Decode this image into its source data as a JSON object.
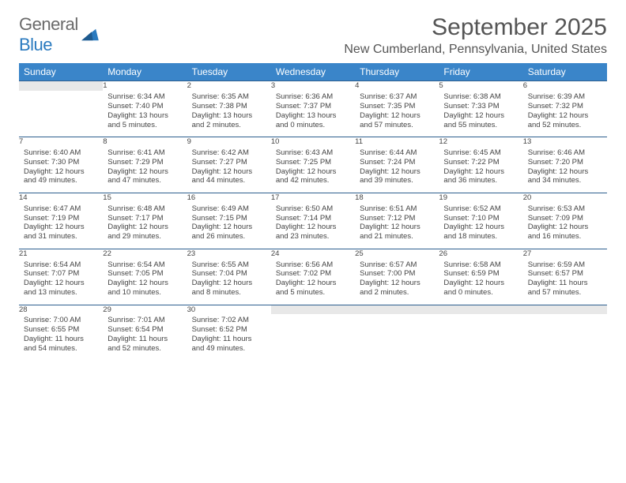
{
  "brand": {
    "part1": "General",
    "part2": "Blue"
  },
  "title": "September 2025",
  "location": "New Cumberland, Pennsylvania, United States",
  "colors": {
    "header_bg": "#3a85c9",
    "header_text": "#ffffff",
    "daynum_bg": "#e8e8e8",
    "row_border": "#2e5f8f",
    "logo_gray": "#6a6a6a",
    "logo_blue": "#2a7abf"
  },
  "weekdays": [
    "Sunday",
    "Monday",
    "Tuesday",
    "Wednesday",
    "Thursday",
    "Friday",
    "Saturday"
  ],
  "weeks": [
    [
      {
        "n": "",
        "sr": "",
        "ss": "",
        "dl": ""
      },
      {
        "n": "1",
        "sr": "Sunrise: 6:34 AM",
        "ss": "Sunset: 7:40 PM",
        "dl": "Daylight: 13 hours and 5 minutes."
      },
      {
        "n": "2",
        "sr": "Sunrise: 6:35 AM",
        "ss": "Sunset: 7:38 PM",
        "dl": "Daylight: 13 hours and 2 minutes."
      },
      {
        "n": "3",
        "sr": "Sunrise: 6:36 AM",
        "ss": "Sunset: 7:37 PM",
        "dl": "Daylight: 13 hours and 0 minutes."
      },
      {
        "n": "4",
        "sr": "Sunrise: 6:37 AM",
        "ss": "Sunset: 7:35 PM",
        "dl": "Daylight: 12 hours and 57 minutes."
      },
      {
        "n": "5",
        "sr": "Sunrise: 6:38 AM",
        "ss": "Sunset: 7:33 PM",
        "dl": "Daylight: 12 hours and 55 minutes."
      },
      {
        "n": "6",
        "sr": "Sunrise: 6:39 AM",
        "ss": "Sunset: 7:32 PM",
        "dl": "Daylight: 12 hours and 52 minutes."
      }
    ],
    [
      {
        "n": "7",
        "sr": "Sunrise: 6:40 AM",
        "ss": "Sunset: 7:30 PM",
        "dl": "Daylight: 12 hours and 49 minutes."
      },
      {
        "n": "8",
        "sr": "Sunrise: 6:41 AM",
        "ss": "Sunset: 7:29 PM",
        "dl": "Daylight: 12 hours and 47 minutes."
      },
      {
        "n": "9",
        "sr": "Sunrise: 6:42 AM",
        "ss": "Sunset: 7:27 PM",
        "dl": "Daylight: 12 hours and 44 minutes."
      },
      {
        "n": "10",
        "sr": "Sunrise: 6:43 AM",
        "ss": "Sunset: 7:25 PM",
        "dl": "Daylight: 12 hours and 42 minutes."
      },
      {
        "n": "11",
        "sr": "Sunrise: 6:44 AM",
        "ss": "Sunset: 7:24 PM",
        "dl": "Daylight: 12 hours and 39 minutes."
      },
      {
        "n": "12",
        "sr": "Sunrise: 6:45 AM",
        "ss": "Sunset: 7:22 PM",
        "dl": "Daylight: 12 hours and 36 minutes."
      },
      {
        "n": "13",
        "sr": "Sunrise: 6:46 AM",
        "ss": "Sunset: 7:20 PM",
        "dl": "Daylight: 12 hours and 34 minutes."
      }
    ],
    [
      {
        "n": "14",
        "sr": "Sunrise: 6:47 AM",
        "ss": "Sunset: 7:19 PM",
        "dl": "Daylight: 12 hours and 31 minutes."
      },
      {
        "n": "15",
        "sr": "Sunrise: 6:48 AM",
        "ss": "Sunset: 7:17 PM",
        "dl": "Daylight: 12 hours and 29 minutes."
      },
      {
        "n": "16",
        "sr": "Sunrise: 6:49 AM",
        "ss": "Sunset: 7:15 PM",
        "dl": "Daylight: 12 hours and 26 minutes."
      },
      {
        "n": "17",
        "sr": "Sunrise: 6:50 AM",
        "ss": "Sunset: 7:14 PM",
        "dl": "Daylight: 12 hours and 23 minutes."
      },
      {
        "n": "18",
        "sr": "Sunrise: 6:51 AM",
        "ss": "Sunset: 7:12 PM",
        "dl": "Daylight: 12 hours and 21 minutes."
      },
      {
        "n": "19",
        "sr": "Sunrise: 6:52 AM",
        "ss": "Sunset: 7:10 PM",
        "dl": "Daylight: 12 hours and 18 minutes."
      },
      {
        "n": "20",
        "sr": "Sunrise: 6:53 AM",
        "ss": "Sunset: 7:09 PM",
        "dl": "Daylight: 12 hours and 16 minutes."
      }
    ],
    [
      {
        "n": "21",
        "sr": "Sunrise: 6:54 AM",
        "ss": "Sunset: 7:07 PM",
        "dl": "Daylight: 12 hours and 13 minutes."
      },
      {
        "n": "22",
        "sr": "Sunrise: 6:54 AM",
        "ss": "Sunset: 7:05 PM",
        "dl": "Daylight: 12 hours and 10 minutes."
      },
      {
        "n": "23",
        "sr": "Sunrise: 6:55 AM",
        "ss": "Sunset: 7:04 PM",
        "dl": "Daylight: 12 hours and 8 minutes."
      },
      {
        "n": "24",
        "sr": "Sunrise: 6:56 AM",
        "ss": "Sunset: 7:02 PM",
        "dl": "Daylight: 12 hours and 5 minutes."
      },
      {
        "n": "25",
        "sr": "Sunrise: 6:57 AM",
        "ss": "Sunset: 7:00 PM",
        "dl": "Daylight: 12 hours and 2 minutes."
      },
      {
        "n": "26",
        "sr": "Sunrise: 6:58 AM",
        "ss": "Sunset: 6:59 PM",
        "dl": "Daylight: 12 hours and 0 minutes."
      },
      {
        "n": "27",
        "sr": "Sunrise: 6:59 AM",
        "ss": "Sunset: 6:57 PM",
        "dl": "Daylight: 11 hours and 57 minutes."
      }
    ],
    [
      {
        "n": "28",
        "sr": "Sunrise: 7:00 AM",
        "ss": "Sunset: 6:55 PM",
        "dl": "Daylight: 11 hours and 54 minutes."
      },
      {
        "n": "29",
        "sr": "Sunrise: 7:01 AM",
        "ss": "Sunset: 6:54 PM",
        "dl": "Daylight: 11 hours and 52 minutes."
      },
      {
        "n": "30",
        "sr": "Sunrise: 7:02 AM",
        "ss": "Sunset: 6:52 PM",
        "dl": "Daylight: 11 hours and 49 minutes."
      },
      {
        "n": "",
        "sr": "",
        "ss": "",
        "dl": ""
      },
      {
        "n": "",
        "sr": "",
        "ss": "",
        "dl": ""
      },
      {
        "n": "",
        "sr": "",
        "ss": "",
        "dl": ""
      },
      {
        "n": "",
        "sr": "",
        "ss": "",
        "dl": ""
      }
    ]
  ]
}
